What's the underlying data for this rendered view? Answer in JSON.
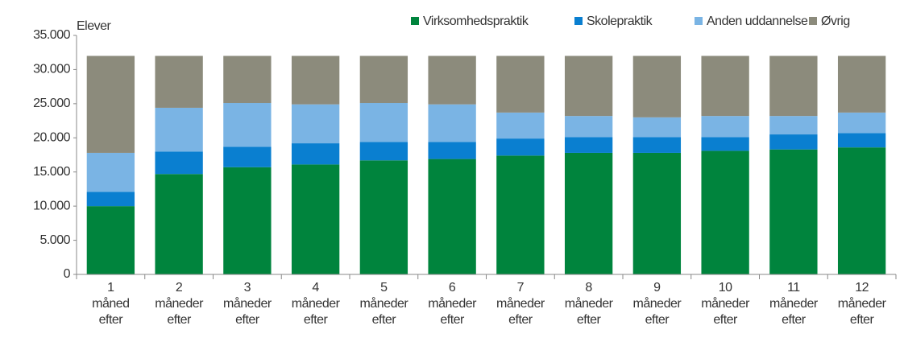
{
  "chart_data": {
    "type": "stacked_bar",
    "y_label": "Elever",
    "categories": [
      [
        "1",
        "måned",
        "efter"
      ],
      [
        "2",
        "måneder",
        "efter"
      ],
      [
        "3",
        "måneder",
        "efter"
      ],
      [
        "4",
        "måneder",
        "efter"
      ],
      [
        "5",
        "måneder",
        "efter"
      ],
      [
        "6",
        "måneder",
        "efter"
      ],
      [
        "7",
        "måneder",
        "efter"
      ],
      [
        "8",
        "måneder",
        "efter"
      ],
      [
        "9",
        "måneder",
        "efter"
      ],
      [
        "10",
        "måneder",
        "efter"
      ],
      [
        "11",
        "måneder",
        "efter"
      ],
      [
        "12",
        "måneder",
        "efter"
      ]
    ],
    "series": [
      {
        "name": "Virksomhedspraktik",
        "color": "#00843d",
        "values": [
          10000,
          14700,
          15700,
          16100,
          16700,
          16900,
          17400,
          17800,
          17800,
          18100,
          18300,
          18600
        ]
      },
      {
        "name": "Skolepraktik",
        "color": "#0a7fd0",
        "values": [
          2100,
          3300,
          3000,
          3100,
          2700,
          2500,
          2500,
          2300,
          2300,
          2000,
          2200,
          2100
        ]
      },
      {
        "name": "Anden uddannelse",
        "color": "#7ab4e4",
        "values": [
          5700,
          6400,
          6400,
          5700,
          5700,
          5500,
          3800,
          3100,
          2900,
          3100,
          2700,
          3000
        ]
      },
      {
        "name": "Øvrig",
        "color": "#8c8b7c",
        "values": [
          14200,
          7600,
          6900,
          7100,
          6900,
          7100,
          8300,
          8800,
          9000,
          8800,
          8800,
          8300
        ]
      }
    ],
    "ylim": [
      0,
      35000
    ],
    "yticks": [
      0,
      {
        "value": 5000,
        "label": "5.000"
      },
      {
        "value": 10000,
        "label": "10.000"
      },
      {
        "value": 15000,
        "label": "15.000"
      },
      {
        "value": 20000,
        "label": "20.000"
      },
      {
        "value": 25000,
        "label": "25.000"
      },
      {
        "value": 30000,
        "label": "30.000"
      },
      {
        "value": 35000,
        "label": "35.000"
      }
    ],
    "legend": "top-right"
  }
}
